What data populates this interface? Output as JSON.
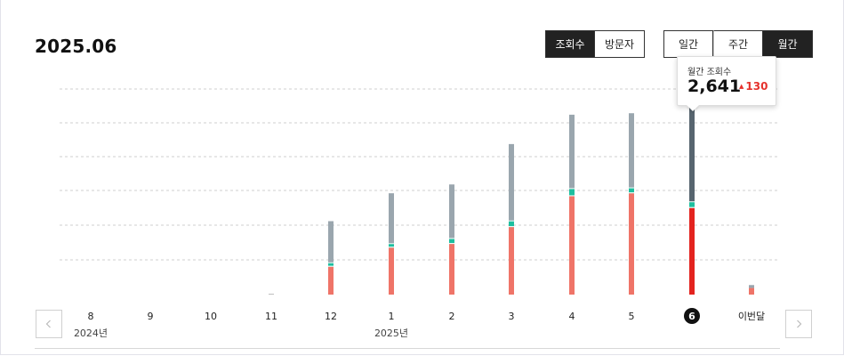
{
  "header": {
    "title": "2025.06"
  },
  "metric_toggle": {
    "items": [
      {
        "label": "조회수",
        "active": true
      },
      {
        "label": "방문자",
        "active": false
      }
    ]
  },
  "period_toggle": {
    "items": [
      {
        "label": "일간",
        "active": false
      },
      {
        "label": "주간",
        "active": false
      },
      {
        "label": "월간",
        "active": true
      }
    ]
  },
  "tooltip": {
    "label": "월간 조회수",
    "value": "2,641",
    "delta": "130"
  },
  "navigation": {
    "prev_icon": "chevron-left-icon",
    "next_icon": "chevron-right-icon"
  },
  "chart_data": {
    "type": "bar",
    "stacked": true,
    "grid": true,
    "categories": [
      "8",
      "9",
      "10",
      "11",
      "12",
      "1",
      "2",
      "3",
      "4",
      "5",
      "6",
      "이번달"
    ],
    "year_labels": [
      {
        "label": "2024년",
        "at_category": "8"
      },
      {
        "label": "2025년",
        "at_category": "1"
      }
    ],
    "selected_category": "6",
    "series": [
      {
        "values": [
          0,
          0,
          0,
          0,
          380,
          640,
          690,
          920,
          1340,
          1380,
          1180,
          90
        ]
      },
      {
        "values": [
          0,
          0,
          0,
          0,
          60,
          60,
          80,
          90,
          110,
          80,
          90,
          0
        ]
      },
      {
        "values": [
          0,
          0,
          0,
          10,
          560,
          680,
          730,
          1040,
          1000,
          1010,
          1371,
          40
        ]
      }
    ],
    "colors": {
      "bottom": "#ef7468",
      "bottom_selected": "#e3231f",
      "middle": "#1dbf9f",
      "top": "#9aa6ae",
      "top_selected": "#57656f",
      "marker_gap": "#ffffff"
    },
    "ylim": [
      0,
      2800
    ]
  }
}
